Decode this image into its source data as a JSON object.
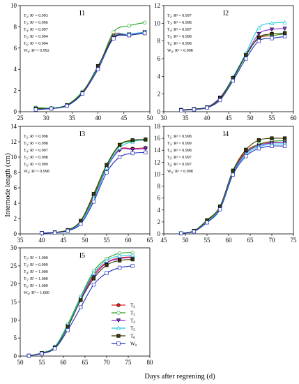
{
  "ylabel": "Internode length (cm)",
  "xlabel": "Days after regrening (d)",
  "legend": {
    "entries": [
      {
        "sub": "2",
        "label": "T",
        "color": "#e4191c",
        "marker": "circle-filled"
      },
      {
        "sub": "3",
        "label": "T",
        "color": "#22a022",
        "marker": "circle-open"
      },
      {
        "sub": "4",
        "label": "T",
        "color": "#8a2be2",
        "marker": "triangle-down-filled"
      },
      {
        "sub": "5",
        "label": "T",
        "color": "#20c8e0",
        "marker": "triangle-up-open"
      },
      {
        "sub": "6",
        "label": "T",
        "color": "#3a3a00",
        "marker": "square-filled"
      },
      {
        "sub": "0",
        "label": "W",
        "color": "#2030c0",
        "marker": "square-open"
      }
    ]
  },
  "chart_data": [
    {
      "type": "line",
      "title": "I1",
      "xlim": [
        25,
        50
      ],
      "ylim": [
        0,
        10
      ],
      "xticks": [
        25,
        30,
        35,
        40,
        45,
        50
      ],
      "yticks": [
        0,
        2,
        4,
        6,
        8,
        10
      ],
      "r2": [
        {
          "pre": "T",
          "sub": "2",
          "text": ": R² = 0.993"
        },
        {
          "pre": "T",
          "sub": "3",
          "text": ": R² = 0.996"
        },
        {
          "pre": "T",
          "sub": "4",
          "text": ": R² = 0.997"
        },
        {
          "pre": "T",
          "sub": "5",
          "text": ": R² = 0.994"
        },
        {
          "pre": "T",
          "sub": "6",
          "text": ": R² = 0.994"
        },
        {
          "pre": "W",
          "sub": "0",
          "text": ": R² = 0.992"
        }
      ],
      "x": [
        28,
        31,
        34,
        37,
        40,
        43,
        46,
        49
      ],
      "series": [
        {
          "name": "T2",
          "values": [
            0.3,
            0.3,
            0.6,
            1.8,
            4.2,
            7.2,
            7.2,
            7.5
          ]
        },
        {
          "name": "T3",
          "values": [
            0.4,
            0.35,
            0.65,
            1.9,
            4.1,
            7.5,
            8.1,
            8.4
          ]
        },
        {
          "name": "T4",
          "values": [
            0.3,
            0.3,
            0.6,
            1.8,
            4.2,
            7.0,
            7.3,
            7.5
          ]
        },
        {
          "name": "T5",
          "values": [
            0.3,
            0.3,
            0.6,
            1.8,
            4.2,
            7.1,
            7.3,
            7.5
          ]
        },
        {
          "name": "T6",
          "values": [
            0.3,
            0.3,
            0.6,
            1.8,
            4.3,
            7.0,
            7.2,
            7.4
          ]
        },
        {
          "name": "W0",
          "values": [
            0.2,
            0.3,
            0.55,
            1.7,
            4.0,
            6.9,
            7.2,
            7.4
          ]
        }
      ]
    },
    {
      "type": "line",
      "title": "I2",
      "xlim": [
        30,
        60
      ],
      "ylim": [
        0,
        12
      ],
      "xticks": [
        30,
        35,
        40,
        45,
        50,
        55,
        60
      ],
      "yticks": [
        0,
        2,
        4,
        6,
        8,
        10,
        12
      ],
      "r2": [
        {
          "pre": "T",
          "sub": "2",
          "text": ": R² = 0.997"
        },
        {
          "pre": "T",
          "sub": "3",
          "text": ": R² = 0.998"
        },
        {
          "pre": "T",
          "sub": "4",
          "text": ": R² = 0.997"
        },
        {
          "pre": "T",
          "sub": "5",
          "text": ": R² = 0.998"
        },
        {
          "pre": "T",
          "sub": "6",
          "text": ": R² = 0.998"
        },
        {
          "pre": "W",
          "sub": "0",
          "text": ": R² = 0.998"
        }
      ],
      "x": [
        34,
        37,
        40,
        43,
        46,
        49,
        52,
        55,
        58
      ],
      "series": [
        {
          "name": "T2",
          "values": [
            0.2,
            0.3,
            0.5,
            1.5,
            3.8,
            6.5,
            8.3,
            8.6,
            8.8
          ]
        },
        {
          "name": "T3",
          "values": [
            0.2,
            0.3,
            0.5,
            1.4,
            3.7,
            6.3,
            8.4,
            8.6,
            8.8
          ]
        },
        {
          "name": "T4",
          "values": [
            0.2,
            0.3,
            0.5,
            1.6,
            3.8,
            6.4,
            8.8,
            9.3,
            9.4
          ]
        },
        {
          "name": "T5",
          "values": [
            0.2,
            0.3,
            0.5,
            1.5,
            3.9,
            6.6,
            9.5,
            10.0,
            10.1
          ]
        },
        {
          "name": "T6",
          "values": [
            0.2,
            0.3,
            0.5,
            1.5,
            3.8,
            6.4,
            8.4,
            8.8,
            8.9
          ]
        },
        {
          "name": "W0",
          "values": [
            0.15,
            0.25,
            0.45,
            1.3,
            3.5,
            6.0,
            8.0,
            8.3,
            8.5
          ]
        }
      ]
    },
    {
      "type": "line",
      "title": "I3",
      "xlim": [
        35,
        65
      ],
      "ylim": [
        0,
        14
      ],
      "xticks": [
        35,
        40,
        45,
        50,
        55,
        60,
        65
      ],
      "yticks": [
        0,
        2,
        4,
        6,
        8,
        10,
        12,
        14
      ],
      "r2": [
        {
          "pre": "T",
          "sub": "2",
          "text": ": R² = 0.998"
        },
        {
          "pre": "T",
          "sub": "3",
          "text": ": R² = 0.998"
        },
        {
          "pre": "T",
          "sub": "4",
          "text": ": R² = 0.997"
        },
        {
          "pre": "T",
          "sub": "5",
          "text": ": R² = 0.998"
        },
        {
          "pre": "T",
          "sub": "6",
          "text": ": R² = 0.999"
        },
        {
          "pre": "W",
          "sub": "0",
          "text": ": R² = 0.998"
        }
      ],
      "x": [
        40,
        43,
        46,
        49,
        52,
        55,
        58,
        61,
        64
      ],
      "series": [
        {
          "name": "T2",
          "values": [
            0.1,
            0.2,
            0.5,
            1.7,
            5.0,
            8.7,
            11.0,
            11.1,
            11.2
          ]
        },
        {
          "name": "T3",
          "values": [
            0.1,
            0.2,
            0.5,
            1.6,
            4.8,
            8.8,
            11.5,
            12.1,
            12.2
          ]
        },
        {
          "name": "T4",
          "values": [
            0.1,
            0.2,
            0.4,
            1.5,
            4.5,
            8.5,
            10.9,
            11.0,
            11.1
          ]
        },
        {
          "name": "T5",
          "values": [
            0.1,
            0.2,
            0.4,
            1.5,
            4.6,
            8.6,
            11.2,
            12.0,
            12.3
          ]
        },
        {
          "name": "T6",
          "values": [
            0.1,
            0.2,
            0.5,
            1.7,
            5.2,
            9.0,
            11.6,
            12.2,
            12.3
          ]
        },
        {
          "name": "W0",
          "values": [
            0.1,
            0.15,
            0.4,
            1.3,
            4.2,
            8.0,
            10.0,
            10.5,
            10.6
          ]
        }
      ]
    },
    {
      "type": "line",
      "title": "I4",
      "xlim": [
        45,
        75
      ],
      "ylim": [
        0,
        18
      ],
      "xticks": [
        45,
        50,
        55,
        60,
        65,
        70,
        75
      ],
      "yticks": [
        0,
        2,
        4,
        6,
        8,
        10,
        12,
        14,
        16,
        18
      ],
      "r2": [
        {
          "pre": "T",
          "sub": "2",
          "text": ": R² = 0.998"
        },
        {
          "pre": "T",
          "sub": "3",
          "text": ": R² = 0.999"
        },
        {
          "pre": "T",
          "sub": "4",
          "text": ": R² = 0.998"
        },
        {
          "pre": "T",
          "sub": "5",
          "text": ": R² = 0.997"
        },
        {
          "pre": "T",
          "sub": "6",
          "text": ": R² = 0.997"
        },
        {
          "pre": "W",
          "sub": "0",
          "text": ": R² = 0.998"
        }
      ],
      "x": [
        49,
        52,
        55,
        58,
        61,
        64,
        67,
        70,
        73
      ],
      "series": [
        {
          "name": "T2",
          "values": [
            0.1,
            0.5,
            2.2,
            4.5,
            10.5,
            13.8,
            15.0,
            15.3,
            15.3
          ]
        },
        {
          "name": "T3",
          "values": [
            0.1,
            0.5,
            2.1,
            4.4,
            10.3,
            13.6,
            15.0,
            15.5,
            15.6
          ]
        },
        {
          "name": "T4",
          "values": [
            0.1,
            0.5,
            2.0,
            4.3,
            10.2,
            13.5,
            14.8,
            15.2,
            15.3
          ]
        },
        {
          "name": "T5",
          "values": [
            0.1,
            0.5,
            2.0,
            4.3,
            10.1,
            13.3,
            14.6,
            15.0,
            15.1
          ]
        },
        {
          "name": "T6",
          "values": [
            0.1,
            0.5,
            2.3,
            4.6,
            10.6,
            14.1,
            15.7,
            16.0,
            16.0
          ]
        },
        {
          "name": "W0",
          "values": [
            0.1,
            0.4,
            1.9,
            4.1,
            9.9,
            13.0,
            14.3,
            14.7,
            14.7
          ]
        }
      ]
    },
    {
      "type": "line",
      "title": "I5",
      "xlim": [
        50,
        80
      ],
      "ylim": [
        0,
        30
      ],
      "xticks": [
        50,
        55,
        60,
        65,
        70,
        75,
        80
      ],
      "yticks": [
        0,
        5,
        10,
        15,
        20,
        25,
        30
      ],
      "r2": [
        {
          "pre": "T",
          "sub": "2",
          "text": ": R² = 1.000"
        },
        {
          "pre": "T",
          "sub": "3",
          "text": ": R² = 0.999"
        },
        {
          "pre": "T",
          "sub": "4",
          "text": ": R² = 1.000"
        },
        {
          "pre": "T",
          "sub": "5",
          "text": ": R² = 1.000"
        },
        {
          "pre": "T",
          "sub": "6",
          "text": ": R² = 1.000"
        },
        {
          "pre": "W",
          "sub": "0",
          "text": ": R² = 1.000"
        }
      ],
      "x": [
        52,
        55,
        58,
        61,
        64,
        67,
        70,
        73,
        76
      ],
      "series": [
        {
          "name": "T2",
          "values": [
            0.1,
            0.8,
            2.5,
            8.5,
            16.0,
            22.5,
            26.0,
            27.2,
            27.5
          ]
        },
        {
          "name": "T3",
          "values": [
            0.1,
            0.9,
            2.6,
            8.8,
            16.5,
            23.5,
            27.0,
            28.5,
            28.7
          ]
        },
        {
          "name": "T4",
          "values": [
            0.1,
            0.8,
            2.4,
            8.3,
            15.8,
            22.0,
            25.8,
            27.0,
            27.3
          ]
        },
        {
          "name": "T5",
          "values": [
            0.1,
            0.8,
            2.5,
            8.4,
            16.2,
            23.0,
            26.5,
            27.8,
            28.0
          ]
        },
        {
          "name": "T6",
          "values": [
            0.1,
            0.8,
            2.3,
            8.0,
            15.5,
            21.5,
            25.2,
            26.5,
            26.8
          ]
        },
        {
          "name": "W0",
          "values": [
            0.1,
            0.7,
            2.1,
            7.2,
            13.5,
            19.8,
            23.0,
            24.5,
            25.0
          ]
        }
      ]
    }
  ]
}
